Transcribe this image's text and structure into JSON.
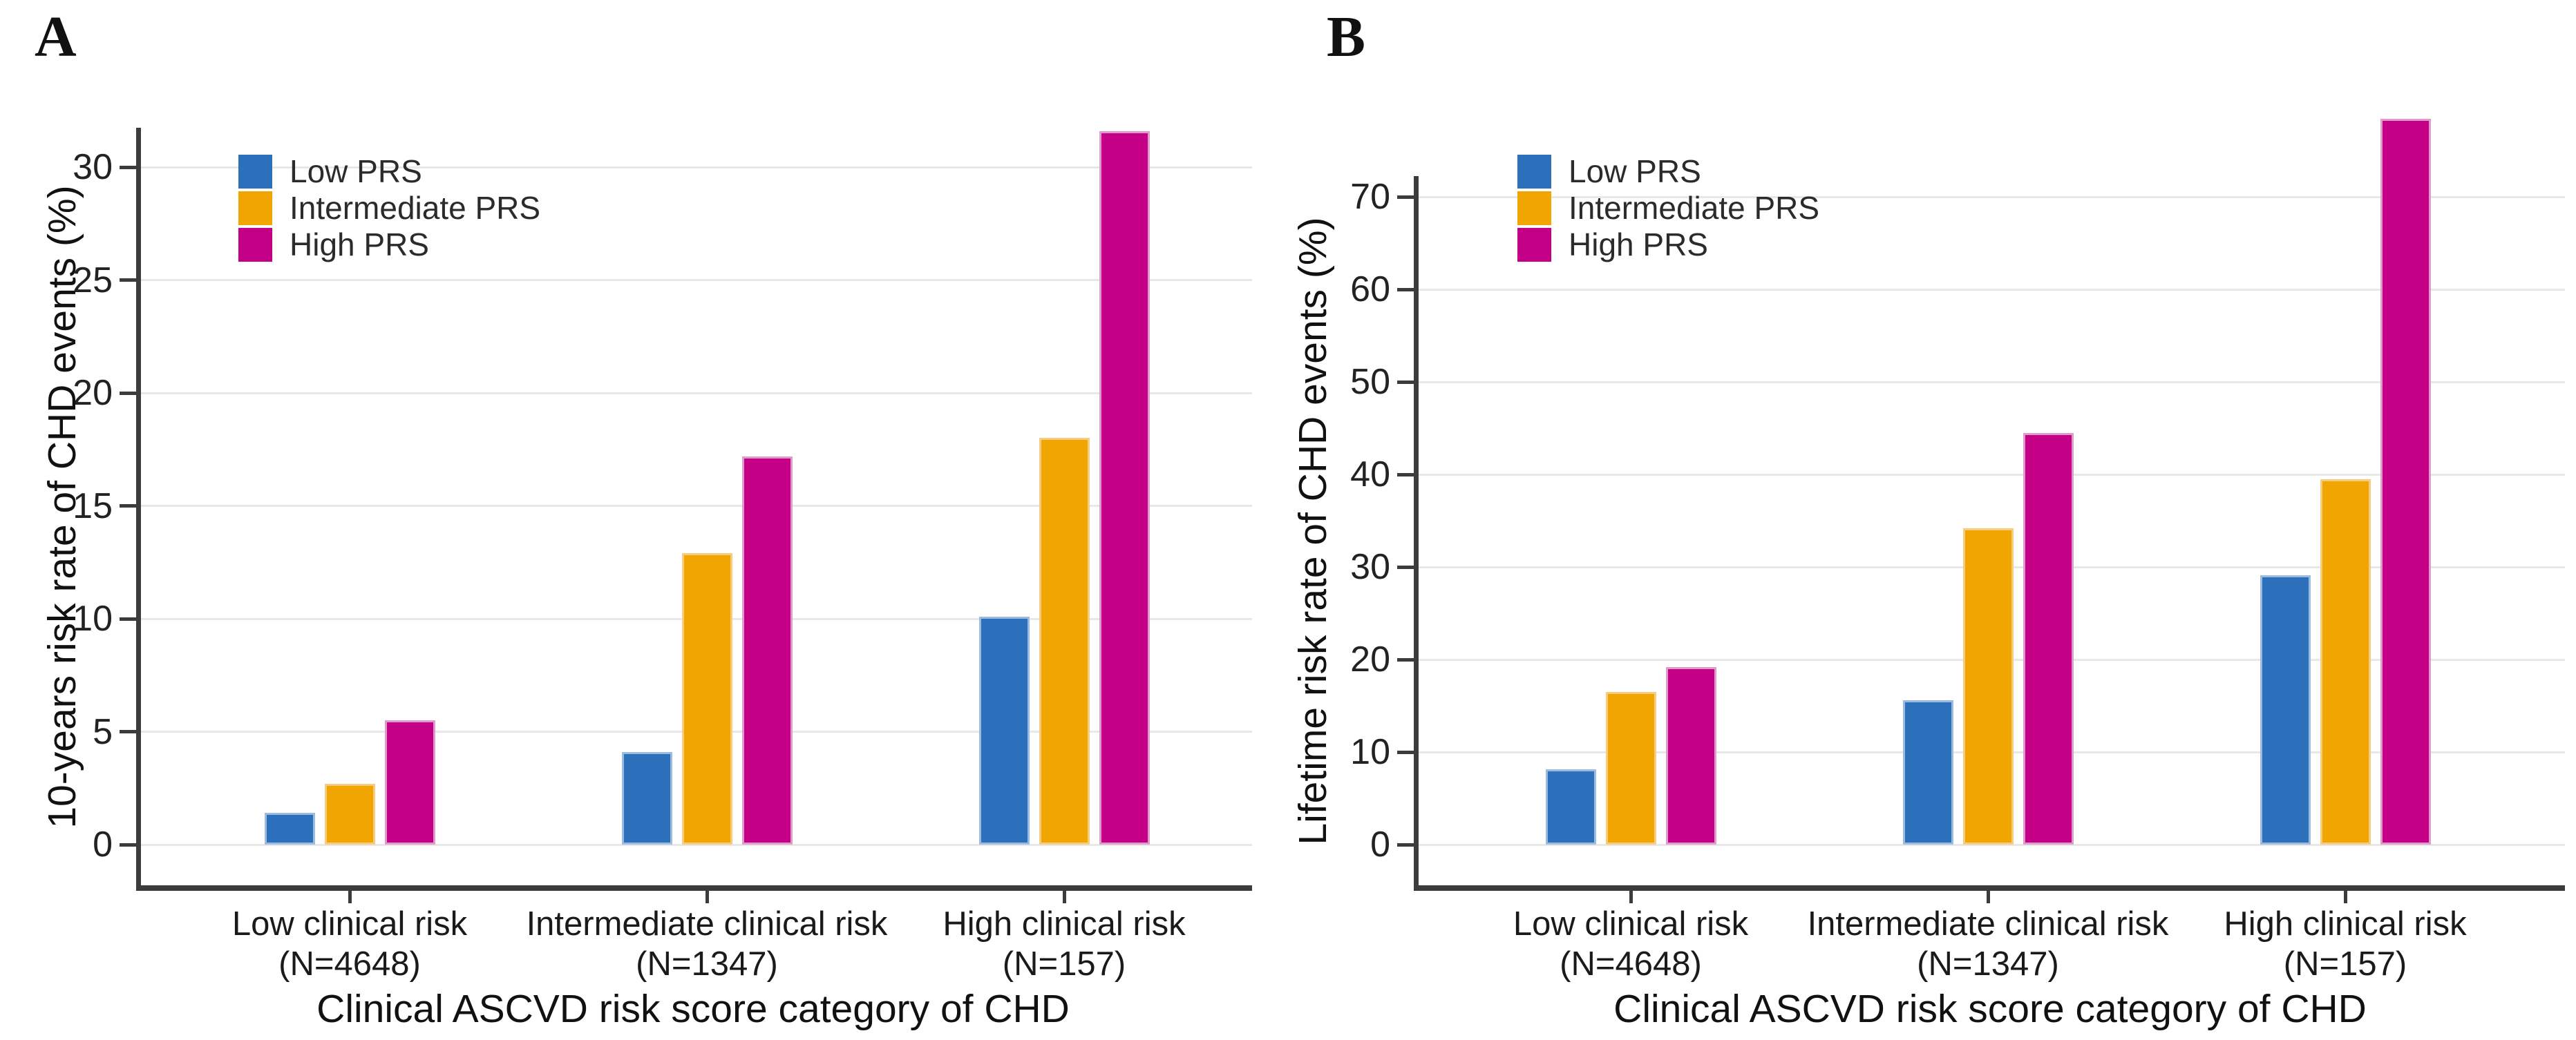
{
  "figure": {
    "background_color": "#FFFFFF",
    "gridline_color": "#E8E8E8",
    "axis_color": "#3C3C3C"
  },
  "chart_data": [
    {
      "panel_label": "A",
      "type": "bar",
      "title": "",
      "xlabel": "Clinical ASCVD risk score category of CHD",
      "ylabel": "10-years risk rate of CHD events (%)",
      "categories": [
        "Low clinical risk",
        "Intermediate clinical risk",
        "High clinical risk"
      ],
      "category_counts": [
        "(N=4648)",
        "(N=1347)",
        "(N=157)"
      ],
      "series": [
        {
          "name": "Low PRS",
          "color": "#2C6FBA",
          "values": [
            1.4,
            4.1,
            10.1
          ]
        },
        {
          "name": "Intermediate PRS",
          "color": "#F0A500",
          "values": [
            2.7,
            12.9,
            18.0
          ]
        },
        {
          "name": "High PRS",
          "color": "#C40087",
          "values": [
            5.5,
            17.2,
            31.6
          ]
        }
      ],
      "ylim": [
        0,
        33
      ],
      "yticks": [
        0,
        5,
        10,
        15,
        20,
        25,
        30
      ],
      "grid": true,
      "legend_position": "top-left"
    },
    {
      "panel_label": "B",
      "type": "bar",
      "title": "",
      "xlabel": "Clinical ASCVD risk score category of CHD",
      "ylabel": "Lifetime risk rate of CHD events (%)",
      "categories": [
        "Low clinical risk",
        "Intermediate clinical risk",
        "High clinical risk"
      ],
      "category_counts": [
        "(N=4648)",
        "(N=1347)",
        "(N=157)"
      ],
      "series": [
        {
          "name": "Low PRS",
          "color": "#2C6FBA",
          "values": [
            8.1,
            15.6,
            29.1
          ]
        },
        {
          "name": "Intermediate PRS",
          "color": "#F0A500",
          "values": [
            16.5,
            34.2,
            39.5
          ]
        },
        {
          "name": "High PRS",
          "color": "#C40087",
          "values": [
            19.2,
            44.5,
            78.4
          ]
        }
      ],
      "ylim": [
        0,
        79
      ],
      "yticks": [
        0,
        10,
        20,
        30,
        40,
        50,
        60,
        70
      ],
      "grid": true,
      "legend_position": "top-left"
    }
  ]
}
